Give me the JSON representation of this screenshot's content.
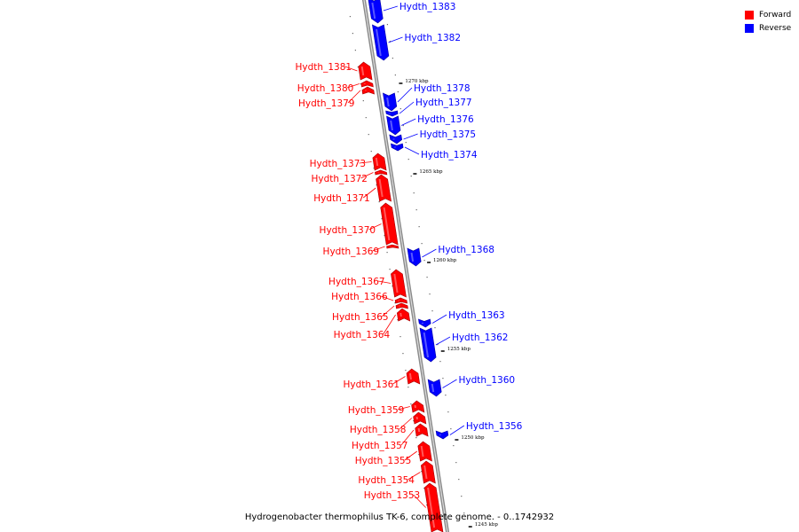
{
  "legend": {
    "forward_label": "Forward",
    "reverse_label": "Reverse",
    "forward_color": "#ff0000",
    "reverse_color": "#0000ff"
  },
  "caption": "Hydrogenobacter thermophilus TK-6, complete genome. - 0..1742932",
  "tick_labels": [
    "1270 kbp",
    "1265 kbp",
    "1260 kbp",
    "1255 kbp",
    "1250 kbp",
    "1245 kbp"
  ],
  "genes": [
    {
      "label": "Hydth_1383",
      "strand": "reverse"
    },
    {
      "label": "Hydth_1382",
      "strand": "reverse"
    },
    {
      "label": "Hydth_1381",
      "strand": "forward"
    },
    {
      "label": "Hydth_1380",
      "strand": "forward"
    },
    {
      "label": "Hydth_1379",
      "strand": "forward"
    },
    {
      "label": "Hydth_1378",
      "strand": "reverse"
    },
    {
      "label": "Hydth_1377",
      "strand": "reverse"
    },
    {
      "label": "Hydth_1376",
      "strand": "reverse"
    },
    {
      "label": "Hydth_1375",
      "strand": "reverse"
    },
    {
      "label": "Hydth_1374",
      "strand": "reverse"
    },
    {
      "label": "Hydth_1373",
      "strand": "forward"
    },
    {
      "label": "Hydth_1372",
      "strand": "forward"
    },
    {
      "label": "Hydth_1371",
      "strand": "forward"
    },
    {
      "label": "Hydth_1370",
      "strand": "forward"
    },
    {
      "label": "Hydth_1369",
      "strand": "forward"
    },
    {
      "label": "Hydth_1368",
      "strand": "reverse"
    },
    {
      "label": "Hydth_1367",
      "strand": "forward"
    },
    {
      "label": "Hydth_1366",
      "strand": "forward"
    },
    {
      "label": "Hydth_1365",
      "strand": "forward"
    },
    {
      "label": "Hydth_1364",
      "strand": "forward"
    },
    {
      "label": "Hydth_1363",
      "strand": "reverse"
    },
    {
      "label": "Hydth_1362",
      "strand": "reverse"
    },
    {
      "label": "Hydth_1361",
      "strand": "forward"
    },
    {
      "label": "Hydth_1360",
      "strand": "reverse"
    },
    {
      "label": "Hydth_1359",
      "strand": "forward"
    },
    {
      "label": "Hydth_1358",
      "strand": "forward"
    },
    {
      "label": "Hydth_1357",
      "strand": "forward"
    },
    {
      "label": "Hydth_1356",
      "strand": "reverse"
    },
    {
      "label": "Hydth_1355",
      "strand": "forward"
    },
    {
      "label": "Hydth_1354",
      "strand": "forward"
    },
    {
      "label": "Hydth_1353",
      "strand": "forward"
    }
  ]
}
